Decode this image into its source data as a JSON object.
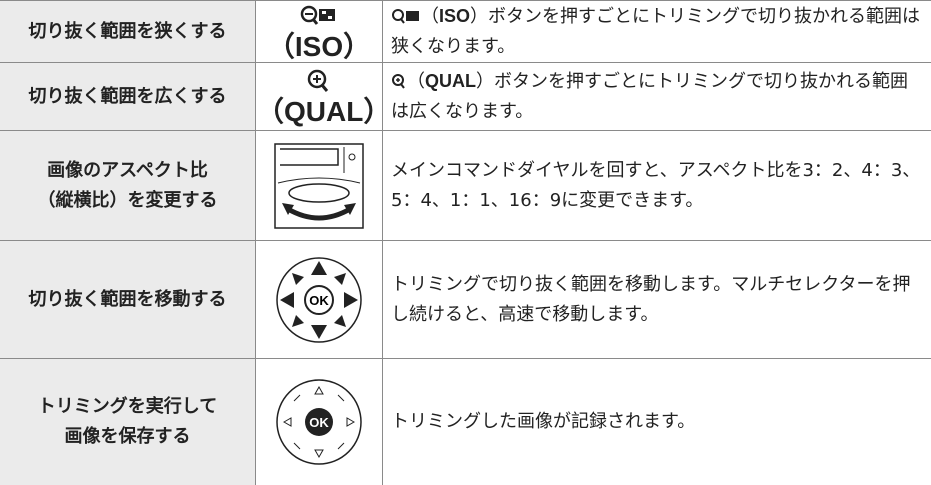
{
  "table": {
    "rows": [
      {
        "label": [
          "切り抜く範囲を狭くする"
        ],
        "button": "（ISO）",
        "desc": [
          "（",
          "ISO",
          "）ボタンを押すごとにトリミングで切り抜かれる範囲は狭くなります。"
        ]
      },
      {
        "label": [
          "切り抜く範囲を広くする"
        ],
        "button": "（QUAL）",
        "desc": [
          "（",
          "QUAL",
          "）ボタンを押すごとにトリミングで切り抜かれる範囲は広くなります。"
        ]
      },
      {
        "label": [
          "画像のアスペクト比",
          "（縦横比）を変更する"
        ],
        "desc": [
          "メインコマンドダイヤルを回すと、アスペクト比を3：2、4：3、5：4、1：1、16：9に変更できます。"
        ]
      },
      {
        "label": [
          "切り抜く範囲を移動する"
        ],
        "icon_text": "OK",
        "desc": [
          "トリミングで切り抜く範囲を移動します。マルチセレクターを押し続けると、高速で移動します。"
        ]
      },
      {
        "label": [
          "トリミングを実行して",
          "画像を保存する"
        ],
        "icon_text": "OK",
        "desc": [
          "トリミングした画像が記録されます。"
        ]
      }
    ]
  }
}
